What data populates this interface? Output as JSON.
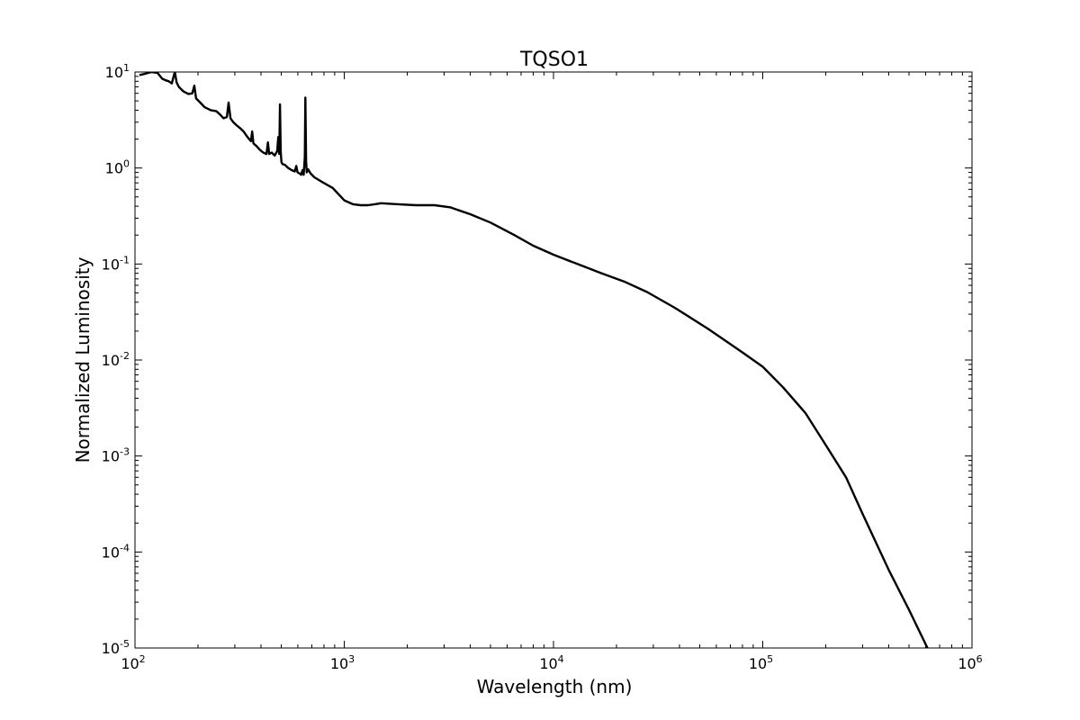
{
  "chart_data": {
    "type": "line",
    "title": "TQSO1",
    "xlabel": "Wavelength (nm)",
    "ylabel": "Normalized Luminosity",
    "x_scale": "log",
    "y_scale": "log",
    "xlim": [
      100,
      1000000
    ],
    "ylim": [
      1e-05,
      10
    ],
    "grid": false,
    "x_ticks": [
      {
        "base": "10",
        "exp": "2",
        "value": 100
      },
      {
        "base": "10",
        "exp": "3",
        "value": 1000
      },
      {
        "base": "10",
        "exp": "4",
        "value": 10000
      },
      {
        "base": "10",
        "exp": "5",
        "value": 100000
      },
      {
        "base": "10",
        "exp": "6",
        "value": 1000000
      }
    ],
    "y_ticks": [
      {
        "base": "10",
        "exp": "1",
        "value": 10
      },
      {
        "base": "10",
        "exp": "0",
        "value": 1
      },
      {
        "base": "10",
        "exp": "-1",
        "value": 0.1
      },
      {
        "base": "10",
        "exp": "-2",
        "value": 0.01
      },
      {
        "base": "10",
        "exp": "-3",
        "value": 0.001
      },
      {
        "base": "10",
        "exp": "-4",
        "value": 0.0001
      },
      {
        "base": "10",
        "exp": "-5",
        "value": 1e-05
      }
    ],
    "series": [
      {
        "color": "#000000",
        "x": [
          105,
          112,
          120,
          128,
          135,
          140,
          145,
          150,
          153,
          155,
          158,
          162,
          170,
          180,
          188,
          192,
          196,
          205,
          215,
          230,
          245,
          255,
          265,
          275,
          280,
          286,
          295,
          305,
          318,
          330,
          345,
          358,
          363,
          368,
          380,
          395,
          410,
          425,
          432,
          438,
          450,
          465,
          478,
          484,
          489,
          493,
          497,
          501,
          507,
          520,
          540,
          560,
          580,
          590,
          598,
          610,
          622,
          632,
          640,
          648,
          652,
          657,
          662,
          672,
          690,
          720,
          780,
          880,
          1000,
          1100,
          1200,
          1300,
          1400,
          1500,
          1800,
          2200,
          2700,
          3200,
          4000,
          5000,
          6500,
          8000,
          10000,
          13000,
          17000,
          22000,
          28000,
          38000,
          55000,
          80000,
          100000,
          125000,
          160000,
          200000,
          250000,
          300000,
          400000,
          500000,
          620000
        ],
        "y": [
          9.3,
          9.6,
          10.0,
          9.8,
          8.5,
          8.2,
          8.0,
          7.6,
          9.0,
          10.0,
          7.8,
          7.0,
          6.3,
          5.9,
          6.0,
          7.2,
          5.3,
          4.8,
          4.3,
          4.0,
          3.9,
          3.6,
          3.3,
          3.4,
          4.8,
          3.3,
          3.0,
          2.8,
          2.6,
          2.4,
          2.1,
          1.9,
          2.4,
          1.8,
          1.7,
          1.55,
          1.45,
          1.4,
          1.85,
          1.4,
          1.45,
          1.35,
          1.5,
          2.1,
          1.4,
          4.6,
          1.5,
          1.15,
          1.1,
          1.08,
          1.0,
          0.95,
          0.92,
          1.05,
          0.9,
          0.88,
          0.85,
          0.95,
          0.85,
          1.3,
          5.4,
          1.2,
          0.9,
          0.97,
          0.88,
          0.8,
          0.72,
          0.62,
          0.46,
          0.42,
          0.41,
          0.41,
          0.42,
          0.43,
          0.42,
          0.41,
          0.41,
          0.39,
          0.33,
          0.27,
          0.2,
          0.155,
          0.125,
          0.1,
          0.08,
          0.065,
          0.051,
          0.035,
          0.021,
          0.012,
          0.0085,
          0.0052,
          0.0028,
          0.0013,
          0.0006,
          0.00025,
          6.5e-05,
          2.5e-05,
          9.5e-06
        ]
      }
    ]
  }
}
